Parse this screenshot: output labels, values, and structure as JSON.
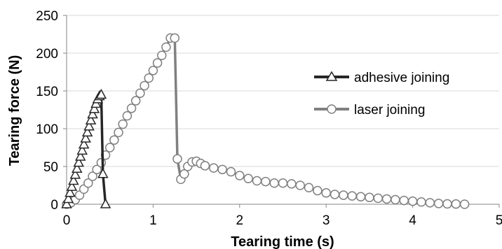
{
  "chart_data": {
    "type": "line",
    "xlabel": "Tearing time (s)",
    "ylabel": "Tearing force (N)",
    "xlim": [
      0,
      5
    ],
    "ylim": [
      0,
      250
    ],
    "x_ticks": [
      "0",
      "1",
      "2",
      "3",
      "4",
      "5"
    ],
    "y_ticks": [
      "0",
      "50",
      "100",
      "150",
      "200",
      "250"
    ],
    "grid": "horizontal",
    "legend_position": "right",
    "series": [
      {
        "name": "adhesive joining",
        "color": "#262626",
        "marker": "triangle",
        "x": [
          0.0,
          0.02,
          0.04,
          0.06,
          0.08,
          0.1,
          0.12,
          0.14,
          0.16,
          0.18,
          0.2,
          0.22,
          0.24,
          0.26,
          0.28,
          0.3,
          0.32,
          0.34,
          0.36,
          0.38,
          0.4,
          0.42,
          0.45
        ],
        "y": [
          0,
          7,
          15,
          23,
          31,
          39,
          47,
          55,
          63,
          71,
          79,
          87,
          95,
          103,
          111,
          119,
          126,
          133,
          139,
          143,
          145,
          40,
          0
        ]
      },
      {
        "name": "laser joining",
        "color": "#808080",
        "marker": "circle",
        "x": [
          0.0,
          0.05,
          0.1,
          0.15,
          0.2,
          0.25,
          0.3,
          0.35,
          0.4,
          0.45,
          0.5,
          0.55,
          0.6,
          0.65,
          0.7,
          0.75,
          0.8,
          0.85,
          0.9,
          0.95,
          1.0,
          1.05,
          1.1,
          1.15,
          1.2,
          1.25,
          1.28,
          1.32,
          1.36,
          1.4,
          1.45,
          1.5,
          1.55,
          1.6,
          1.7,
          1.8,
          1.9,
          2.0,
          2.1,
          2.2,
          2.3,
          2.4,
          2.5,
          2.6,
          2.7,
          2.8,
          2.9,
          3.0,
          3.1,
          3.2,
          3.3,
          3.4,
          3.5,
          3.6,
          3.7,
          3.8,
          3.9,
          4.0,
          4.1,
          4.2,
          4.3,
          4.4,
          4.5,
          4.6
        ],
        "y": [
          0,
          2,
          6,
          12,
          20,
          28,
          37,
          46,
          55,
          65,
          75,
          85,
          95,
          106,
          117,
          127,
          137,
          147,
          157,
          167,
          177,
          187,
          197,
          208,
          220,
          220,
          60,
          33,
          40,
          50,
          56,
          57,
          54,
          51,
          48,
          46,
          43,
          38,
          34,
          31,
          30,
          28,
          28,
          27,
          25,
          22,
          18,
          15,
          13,
          12,
          11,
          10,
          9,
          8,
          7,
          6,
          5,
          4,
          3,
          2,
          1,
          0.5,
          0.3,
          0
        ]
      }
    ]
  }
}
